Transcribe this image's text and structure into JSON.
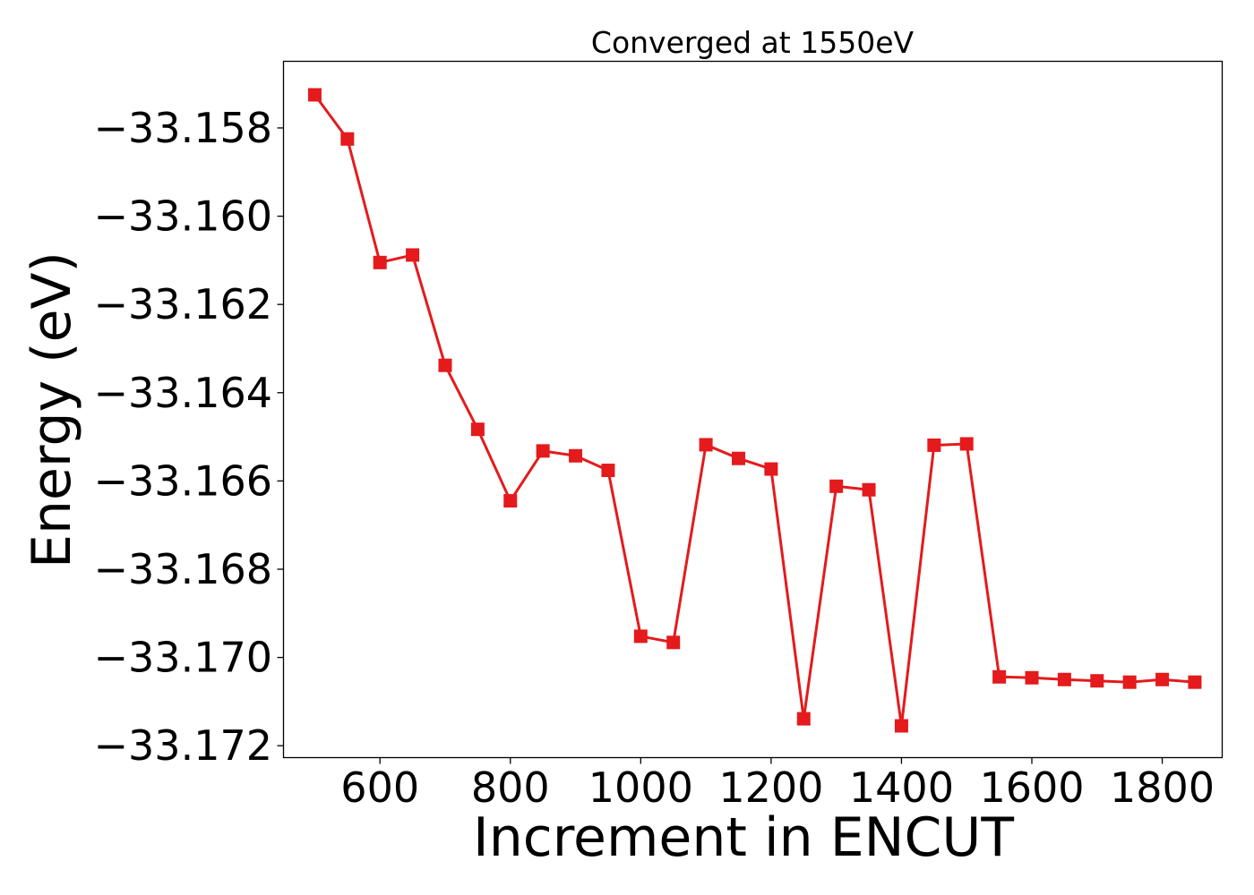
{
  "chart_data": {
    "type": "line",
    "title": "Converged at 1550eV",
    "xlabel": "Increment in ENCUT",
    "ylabel": "Energy (eV)",
    "xlim": [
      452,
      1892
    ],
    "ylim": [
      -33.17227,
      -33.15649
    ],
    "x_ticks": [
      600,
      800,
      1000,
      1200,
      1400,
      1600,
      1800
    ],
    "x_tick_labels": [
      "600",
      "800",
      "1000",
      "1200",
      "1400",
      "1600",
      "1800"
    ],
    "y_ticks": [
      -33.158,
      -33.16,
      -33.162,
      -33.164,
      -33.166,
      -33.168,
      -33.17,
      -33.172
    ],
    "y_tick_labels": [
      "−33.158",
      "−33.160",
      "−33.162",
      "−33.164",
      "−33.166",
      "−33.168",
      "−33.170",
      "−33.172"
    ],
    "grid": false,
    "series": [
      {
        "color": "#e41a1c",
        "marker": "square",
        "x": [
          500,
          550,
          600,
          650,
          700,
          750,
          800,
          850,
          900,
          950,
          1000,
          1050,
          1100,
          1150,
          1200,
          1250,
          1300,
          1350,
          1400,
          1450,
          1500,
          1550,
          1600,
          1650,
          1700,
          1750,
          1800,
          1850
        ],
        "y": [
          -33.15725,
          -33.15825,
          -33.16105,
          -33.16088,
          -33.16338,
          -33.16483,
          -33.16645,
          -33.16532,
          -33.16543,
          -33.16576,
          -33.16952,
          -33.16966,
          -33.16518,
          -33.16549,
          -33.16573,
          -33.17139,
          -33.16612,
          -33.1662,
          -33.17155,
          -33.16519,
          -33.16516,
          -33.17044,
          -33.17046,
          -33.1705,
          -33.17053,
          -33.17056,
          -33.1705,
          -33.17056
        ]
      }
    ]
  }
}
